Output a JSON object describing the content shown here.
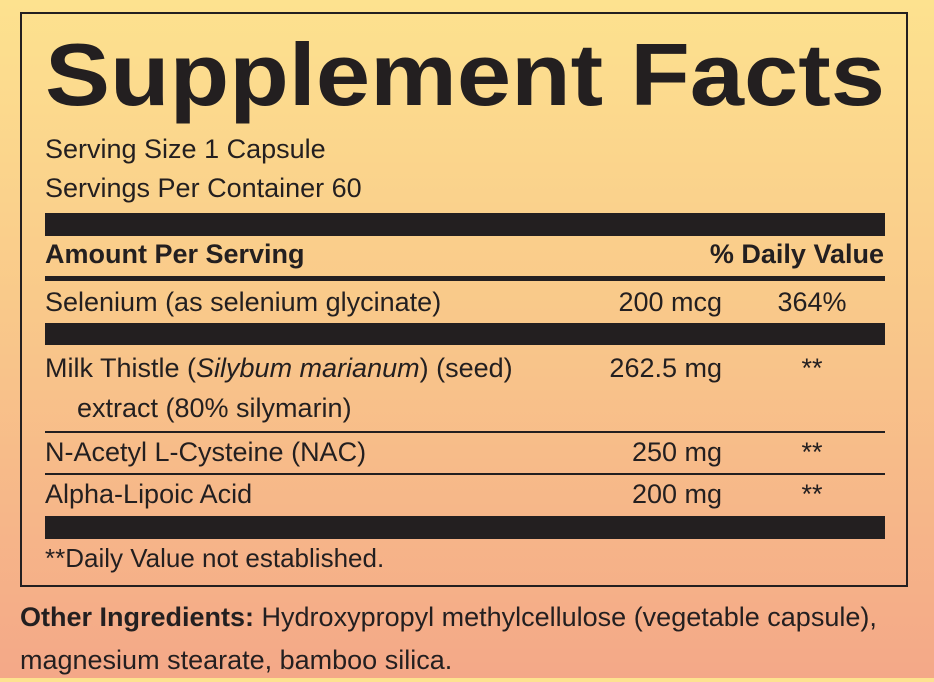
{
  "title": "Supplement Facts",
  "serving_size": "Serving Size 1 Capsule",
  "servings_per_container": "Servings Per Container 60",
  "table": {
    "header": {
      "amount": "Amount Per Serving",
      "daily_value": "% Daily Value"
    },
    "rows": [
      {
        "name": "Selenium (as selenium glycinate)",
        "amount": "200 mcg",
        "daily_value": "364%"
      },
      {
        "name_parts": [
          "Milk Thistle (",
          "Silybum marianum",
          ") (seed)"
        ],
        "name_line2": "extract (80% silymarin)",
        "amount": "262.5 mg",
        "daily_value": "**"
      },
      {
        "name": "N-Acetyl L-Cysteine (NAC)",
        "amount": "250 mg",
        "daily_value": "**"
      },
      {
        "name": "Alpha-Lipoic Acid",
        "amount": "200 mg",
        "daily_value": "**"
      }
    ]
  },
  "footnote": "**Daily Value not established.",
  "other_ingredients": {
    "label": "Other Ingredients:",
    "text": "Hydroxypropyl methylcellulose (vegetable capsule), magnesium stearate, bamboo silica."
  }
}
